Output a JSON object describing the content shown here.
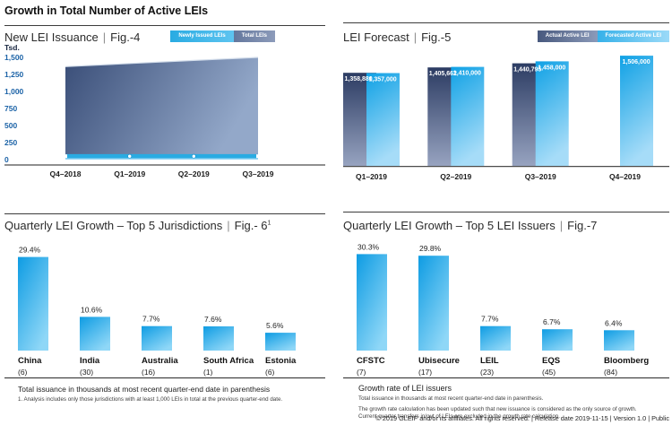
{
  "page": {
    "title": "Growth in Total Number of Active LEIs",
    "footer": "© 2019 GLEIF and/or its affiliates. All rights reserved.  |  Release date 2019-11-15  |  Version 1.0  |  Public"
  },
  "colors": {
    "accent_cyan": "#29abe2",
    "accent_navy_dark": "#2c3c63",
    "accent_navy_light": "#97a3c0",
    "area_gradient": [
      "#3a4e78",
      "#93a8c9"
    ],
    "bar_cyan_gradient": [
      "#0e9ce3",
      "#8fd7f7"
    ],
    "axis_label_blue": "#1c63a7",
    "text": "#231f20"
  },
  "panels": {
    "fig4": {
      "title": "New LEI Issuance",
      "fig": "Fig.-4",
      "legend": [
        "Newly Issued LEIs",
        "Total LEIs"
      ]
    },
    "fig5": {
      "title": "LEI Forecast",
      "fig": "Fig.-5",
      "legend": [
        "Actual Active LEI",
        "Forecasted Active LEI"
      ]
    },
    "fig6": {
      "title": "Quarterly LEI Growth – Top 5 Jurisdictions",
      "fig": "Fig.- 6",
      "fig_sup": "1",
      "note1": "Total issuance in thousands at most recent quarter-end date in parenthesis",
      "note2": "1. Analysis includes only those jurisdictions with at least 1,000 LEIs in total at the previous quarter-end date."
    },
    "fig7": {
      "title": "Quarterly LEI Growth – Top 5 LEI Issuers",
      "fig": "Fig.-7",
      "heading": "Growth rate of LEI issuers",
      "note1": "Total issuance in thousands at most recent quarter-end date in parenthesis.",
      "note2": "The growth rate calculation has been updated such that new issuance is considered as the only source of growth. Current quarter transfers in/out of LEIs are excluded in the growth rate calculation."
    }
  },
  "chart_data": [
    {
      "id": "fig4",
      "type": "area",
      "title": "New LEI Issuance | Fig.-4",
      "categories": [
        "Q4–2018",
        "Q1–2019",
        "Q2–2019",
        "Q3–2019"
      ],
      "series": [
        {
          "name": "Total LEIs",
          "type": "area",
          "values": [
            1365,
            1410,
            1455,
            1500
          ],
          "estimated": true
        },
        {
          "name": "Newly Issued LEIs",
          "type": "line",
          "values": [
            50,
            50,
            50,
            50
          ],
          "estimated": true
        }
      ],
      "ylabel": "Tsd.",
      "yticks": [
        0,
        250,
        500,
        750,
        1000,
        1250,
        1500
      ],
      "ytick_labels": [
        "0",
        "250",
        "500",
        "750",
        "1,000",
        "1,250",
        "1,500"
      ],
      "ylim": [
        0,
        1500
      ],
      "grid": false,
      "legend_position": "top-right"
    },
    {
      "id": "fig5",
      "type": "bar",
      "title": "LEI Forecast | Fig.-5",
      "categories": [
        "Q1–2019",
        "Q2–2019",
        "Q3–2019",
        "Q4–2019"
      ],
      "series": [
        {
          "name": "Actual Active LEI",
          "values": [
            1358880,
            1405662,
            1440795,
            null
          ],
          "labels": [
            "1,358,880",
            "1,405,662",
            "1,440,795",
            null
          ]
        },
        {
          "name": "Forecasted Active LEI",
          "values": [
            1357000,
            1410000,
            1458000,
            1506000
          ],
          "labels": [
            "1,357,000",
            "1,410,000",
            "1,458,000",
            "1,506,000"
          ]
        }
      ],
      "legend_position": "top-right",
      "value_labels_position": "inside-top",
      "y_axis": "hidden-truncated-baseline"
    },
    {
      "id": "fig6",
      "type": "bar",
      "title": "Quarterly LEI Growth – Top 5 Jurisdictions | Fig.-6 (1)",
      "categories": [
        "China",
        "India",
        "Australia",
        "South Africa",
        "Estonia"
      ],
      "sublabels": [
        "(6)",
        "(30)",
        "(16)",
        "(1)",
        "(6)"
      ],
      "values": [
        29.4,
        10.6,
        7.7,
        7.6,
        5.6
      ],
      "value_labels": [
        "29.4%",
        "10.6%",
        "7.7%",
        "7.6%",
        "5.6%"
      ]
    },
    {
      "id": "fig7",
      "type": "bar",
      "title": "Quarterly LEI Growth – Top 5 LEI Issuers | Fig.-7",
      "categories": [
        "CFSTC",
        "Ubisecure",
        "LEIL",
        "EQS",
        "Bloomberg"
      ],
      "sublabels": [
        "(7)",
        "(17)",
        "(23)",
        "(45)",
        "(84)"
      ],
      "values": [
        30.3,
        29.8,
        7.7,
        6.7,
        6.4
      ],
      "value_labels": [
        "30.3%",
        "29.8%",
        "7.7%",
        "6.7%",
        "6.4%"
      ]
    }
  ]
}
